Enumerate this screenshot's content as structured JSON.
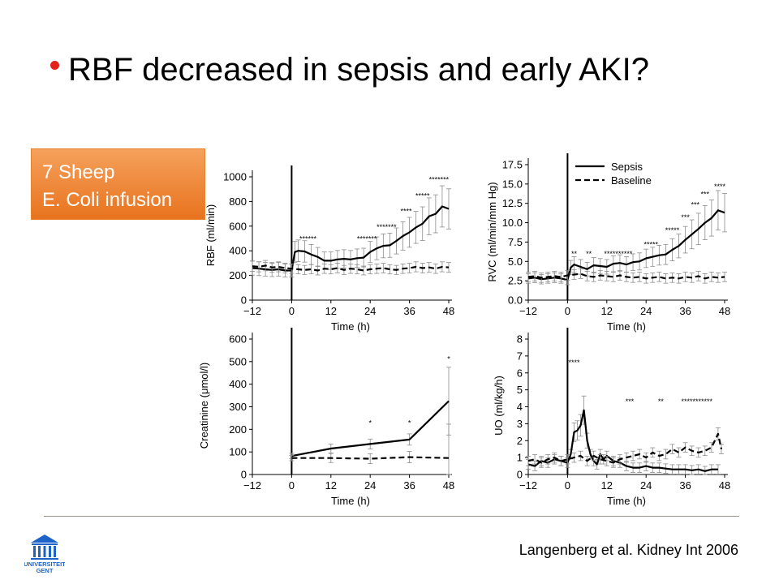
{
  "slide": {
    "title": "RBF decreased in sepsis and early AKI?",
    "callout": {
      "line1": "7 Sheep",
      "line2": "E. Coli infusion"
    },
    "citation": "Langenberg et al. Kidney Int 2006",
    "logo_text": {
      "line1": "UNIVERSITEIT",
      "line2": "GENT"
    }
  },
  "colors": {
    "bullet": "#e2231a",
    "callout": "#ef8a33",
    "logo": "#1e64c8",
    "lines": "#000000",
    "error_bars": "#8c8c8c"
  },
  "chart_data": [
    {
      "type": "line",
      "panel": "top-left",
      "ylabel": "RBF (ml/min)",
      "xlabel": "Time (h)",
      "ylim": [
        0,
        1000
      ],
      "yticks": [
        0,
        200,
        400,
        600,
        800,
        1000
      ],
      "xlim": [
        -12,
        48
      ],
      "xticks": [
        -12,
        0,
        12,
        24,
        36,
        48
      ],
      "series": [
        {
          "style": "solid",
          "x": [
            -12,
            -10,
            -8,
            -6,
            -4,
            -2,
            0,
            1,
            2,
            4,
            6,
            8,
            10,
            12,
            14,
            16,
            18,
            20,
            22,
            24,
            26,
            28,
            30,
            32,
            34,
            36,
            38,
            40,
            42,
            44,
            46,
            48
          ],
          "values": [
            260,
            255,
            250,
            245,
            250,
            240,
            240,
            390,
            400,
            395,
            370,
            350,
            320,
            320,
            330,
            335,
            330,
            340,
            345,
            390,
            420,
            440,
            445,
            480,
            520,
            550,
            590,
            620,
            680,
            700,
            760,
            740
          ]
        },
        {
          "style": "dashed",
          "x": [
            -12,
            -10,
            -8,
            -6,
            -4,
            -2,
            0,
            2,
            4,
            6,
            8,
            10,
            12,
            14,
            16,
            18,
            20,
            22,
            24,
            26,
            28,
            30,
            32,
            34,
            36,
            38,
            40,
            42,
            44,
            46,
            48
          ],
          "values": [
            275,
            270,
            280,
            265,
            270,
            260,
            255,
            250,
            245,
            250,
            240,
            255,
            250,
            260,
            245,
            255,
            250,
            240,
            250,
            255,
            260,
            250,
            245,
            255,
            260,
            270,
            260,
            265,
            255,
            270,
            265
          ]
        }
      ],
      "annotations": [
        {
          "text": "******",
          "x": 5,
          "y": 510
        },
        {
          "text": "*******",
          "x": 23,
          "y": 510
        },
        {
          "text": "*******",
          "x": 29,
          "y": 605
        },
        {
          "text": "****",
          "x": 35,
          "y": 735
        },
        {
          "text": "*****",
          "x": 40,
          "y": 860
        },
        {
          "text": "*******",
          "x": 45,
          "y": 990
        }
      ]
    },
    {
      "type": "line",
      "panel": "top-right",
      "ylabel": "RVC (ml/min/mm Hg)",
      "xlabel": "Time (h)",
      "ylim": [
        0,
        17.5
      ],
      "yticks": [
        0.0,
        2.5,
        5.0,
        7.5,
        10.0,
        12.5,
        15.0,
        17.5
      ],
      "ytick_labels": [
        "0.0",
        "2.5",
        "5.0",
        "7.5",
        "10.0",
        "12.5",
        "15.0",
        "17.5"
      ],
      "xlim": [
        -12,
        48
      ],
      "xticks": [
        -12,
        0,
        12,
        24,
        36,
        48
      ],
      "legend": {
        "placement": "top-left",
        "entries": [
          {
            "label": "Sepsis",
            "style": "solid"
          },
          {
            "label": "Baseline",
            "style": "dashed"
          }
        ]
      },
      "series": [
        {
          "name": "Sepsis",
          "style": "solid",
          "x": [
            -12,
            -10,
            -8,
            -6,
            -4,
            -2,
            0,
            1,
            2,
            4,
            6,
            8,
            10,
            12,
            14,
            16,
            18,
            20,
            22,
            24,
            26,
            28,
            30,
            32,
            34,
            36,
            38,
            40,
            42,
            44,
            46,
            48
          ],
          "values": [
            2.8,
            2.9,
            2.7,
            2.8,
            2.9,
            2.8,
            2.6,
            4.2,
            4.6,
            4.3,
            4.0,
            4.5,
            4.4,
            4.3,
            4.7,
            4.8,
            4.6,
            4.9,
            5.0,
            5.4,
            5.6,
            5.8,
            5.9,
            6.5,
            7.0,
            7.8,
            8.5,
            9.2,
            10.0,
            10.6,
            11.6,
            11.3
          ]
        },
        {
          "name": "Baseline",
          "style": "dashed",
          "x": [
            -12,
            -10,
            -8,
            -6,
            -4,
            -2,
            0,
            2,
            4,
            6,
            8,
            10,
            12,
            14,
            16,
            18,
            20,
            22,
            24,
            26,
            28,
            30,
            32,
            34,
            36,
            38,
            40,
            42,
            44,
            46,
            48
          ],
          "values": [
            3.0,
            3.1,
            2.9,
            3.0,
            3.1,
            3.0,
            3.2,
            3.3,
            3.4,
            3.1,
            3.0,
            3.2,
            3.1,
            3.0,
            3.2,
            3.0,
            2.9,
            3.0,
            2.8,
            2.9,
            3.0,
            2.8,
            2.9,
            2.8,
            3.0,
            2.9,
            3.1,
            2.8,
            3.0,
            2.9,
            3.0
          ]
        }
      ],
      "annotations": [
        {
          "text": "**",
          "x": 2,
          "y": 6.2
        },
        {
          "text": "**",
          "x": 6.5,
          "y": 6.2
        },
        {
          "text": "**********",
          "x": 15.5,
          "y": 6.2
        },
        {
          "text": "*****",
          "x": 25.5,
          "y": 7.4
        },
        {
          "text": "*****",
          "x": 32,
          "y": 9.2
        },
        {
          "text": "***",
          "x": 36,
          "y": 10.9
        },
        {
          "text": "***",
          "x": 39,
          "y": 12.5
        },
        {
          "text": "***",
          "x": 42,
          "y": 13.9
        },
        {
          "text": "****",
          "x": 46.5,
          "y": 14.9
        }
      ]
    },
    {
      "type": "line",
      "panel": "bottom-left",
      "ylabel": "Creatinine (μmol/l)",
      "xlabel": "Time (h)",
      "ylim": [
        0,
        600
      ],
      "yticks": [
        0,
        100,
        200,
        300,
        400,
        500,
        600
      ],
      "xlim": [
        -12,
        48
      ],
      "xticks": [
        -12,
        0,
        12,
        24,
        36,
        48
      ],
      "series": [
        {
          "style": "solid",
          "x": [
            0,
            12,
            24,
            36,
            48
          ],
          "values": [
            82,
            115,
            135,
            155,
            325
          ]
        },
        {
          "style": "dashed",
          "x": [
            0,
            12,
            24,
            36,
            48
          ],
          "values": [
            73,
            73,
            70,
            77,
            73
          ]
        }
      ],
      "annotations": [
        {
          "text": "*",
          "x": 24,
          "y": 235
        },
        {
          "text": "*",
          "x": 36,
          "y": 235
        },
        {
          "text": "*",
          "x": 48,
          "y": 520
        }
      ]
    },
    {
      "type": "line",
      "panel": "bottom-right",
      "ylabel": "UO (ml/kg/h)",
      "xlabel": "Time (h)",
      "ylim": [
        0,
        8
      ],
      "yticks": [
        0,
        1,
        2,
        3,
        4,
        5,
        6,
        7,
        8
      ],
      "xlim": [
        -12,
        48
      ],
      "xticks": [
        -12,
        0,
        12,
        24,
        36,
        48
      ],
      "series": [
        {
          "style": "solid",
          "x": [
            -12,
            -10,
            -8,
            -6,
            -4,
            -2,
            0,
            1,
            2,
            3,
            4,
            5,
            6,
            7,
            8,
            9,
            10,
            11,
            12,
            14,
            16,
            18,
            20,
            22,
            24,
            26,
            28,
            30,
            32,
            34,
            36,
            38,
            40,
            42,
            44,
            46
          ],
          "values": [
            0.6,
            0.5,
            0.8,
            0.7,
            0.9,
            0.8,
            0.7,
            1.2,
            2.5,
            2.6,
            2.9,
            3.8,
            2.0,
            1.2,
            0.8,
            0.6,
            1.2,
            0.9,
            1.1,
            0.8,
            0.7,
            0.5,
            0.4,
            0.4,
            0.5,
            0.4,
            0.4,
            0.35,
            0.3,
            0.3,
            0.3,
            0.25,
            0.3,
            0.2,
            0.3,
            0.3
          ]
        },
        {
          "style": "dashed",
          "x": [
            -12,
            -10,
            -8,
            -6,
            -4,
            -2,
            0,
            2,
            4,
            6,
            8,
            10,
            12,
            14,
            16,
            18,
            20,
            22,
            24,
            26,
            28,
            30,
            32,
            34,
            36,
            38,
            40,
            42,
            44,
            46,
            47
          ],
          "values": [
            0.8,
            0.9,
            0.7,
            0.9,
            1.0,
            0.8,
            0.9,
            1.0,
            1.1,
            0.8,
            1.1,
            0.9,
            0.8,
            0.7,
            0.9,
            1.0,
            1.1,
            1.2,
            1.0,
            1.3,
            1.1,
            1.2,
            1.5,
            1.3,
            1.6,
            1.4,
            1.3,
            1.4,
            1.6,
            2.4,
            1.5
          ]
        }
      ],
      "annotations": [
        {
          "text": "****",
          "x": 2,
          "y": 6.7
        },
        {
          "text": "***",
          "x": 19,
          "y": 4.4
        },
        {
          "text": "**",
          "x": 28.5,
          "y": 4.4
        },
        {
          "text": "***********",
          "x": 39.5,
          "y": 4.4
        }
      ]
    }
  ]
}
